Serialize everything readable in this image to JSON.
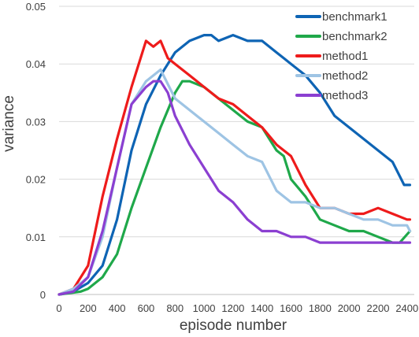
{
  "chart_data": {
    "type": "line",
    "title": "",
    "xlabel": "episode number",
    "ylabel": "variance",
    "xlim": [
      0,
      2450
    ],
    "ylim": [
      0,
      0.05
    ],
    "x_ticks": [
      "0",
      "200",
      "400",
      "600",
      "800",
      "1000",
      "1200",
      "1400",
      "1600",
      "1800",
      "2000",
      "2200",
      "2400"
    ],
    "x_tick_values": [
      0,
      200,
      400,
      600,
      800,
      1000,
      1200,
      1400,
      1600,
      1800,
      2000,
      2200,
      2400
    ],
    "y_ticks": [
      "0",
      "0.01",
      "0.02",
      "0.03",
      "0.04",
      "0.05"
    ],
    "y_tick_values": [
      0,
      0.01,
      0.02,
      0.03,
      0.04,
      0.05
    ],
    "grid": "horizontal",
    "legend_position": "top-right",
    "series": [
      {
        "name": "benchmark1",
        "color": "#0e64b4",
        "x": [
          0,
          100,
          200,
          300,
          400,
          500,
          600,
          700,
          800,
          900,
          1000,
          1050,
          1100,
          1200,
          1300,
          1400,
          1500,
          1550,
          1600,
          1700,
          1800,
          1900,
          2000,
          2100,
          2200,
          2300,
          2380,
          2420
        ],
        "y": [
          0,
          0.0005,
          0.002,
          0.005,
          0.013,
          0.025,
          0.033,
          0.038,
          0.042,
          0.044,
          0.045,
          0.045,
          0.044,
          0.045,
          0.044,
          0.044,
          0.042,
          0.041,
          0.04,
          0.038,
          0.035,
          0.031,
          0.029,
          0.027,
          0.025,
          0.023,
          0.019,
          0.019
        ]
      },
      {
        "name": "benchmark2",
        "color": "#1fa84a",
        "x": [
          0,
          150,
          200,
          300,
          400,
          500,
          600,
          700,
          800,
          850,
          900,
          1000,
          1100,
          1200,
          1300,
          1400,
          1500,
          1550,
          1600,
          1700,
          1800,
          1900,
          2000,
          2100,
          2200,
          2300,
          2350,
          2420
        ],
        "y": [
          0,
          0.0005,
          0.001,
          0.003,
          0.007,
          0.015,
          0.022,
          0.029,
          0.035,
          0.037,
          0.037,
          0.036,
          0.034,
          0.032,
          0.03,
          0.029,
          0.025,
          0.024,
          0.02,
          0.017,
          0.013,
          0.012,
          0.011,
          0.011,
          0.01,
          0.009,
          0.009,
          0.011
        ]
      },
      {
        "name": "method1",
        "color": "#ee1b1b",
        "x": [
          0,
          100,
          200,
          300,
          400,
          500,
          600,
          650,
          700,
          750,
          800,
          900,
          1000,
          1100,
          1200,
          1300,
          1400,
          1500,
          1600,
          1700,
          1800,
          1900,
          2000,
          2100,
          2200,
          2300,
          2400,
          2420
        ],
        "y": [
          0,
          0.001,
          0.005,
          0.017,
          0.027,
          0.036,
          0.044,
          0.043,
          0.044,
          0.041,
          0.04,
          0.038,
          0.036,
          0.034,
          0.033,
          0.031,
          0.029,
          0.026,
          0.024,
          0.019,
          0.015,
          0.015,
          0.014,
          0.014,
          0.015,
          0.014,
          0.013,
          0.013
        ]
      },
      {
        "name": "method2",
        "color": "#9ec4e4",
        "x": [
          0,
          100,
          200,
          300,
          400,
          500,
          600,
          700,
          800,
          900,
          1000,
          1100,
          1200,
          1300,
          1400,
          1500,
          1600,
          1700,
          1800,
          1900,
          2000,
          2100,
          2200,
          2300,
          2400,
          2420
        ],
        "y": [
          0,
          0.001,
          0.003,
          0.01,
          0.022,
          0.033,
          0.037,
          0.039,
          0.034,
          0.032,
          0.03,
          0.028,
          0.026,
          0.024,
          0.023,
          0.018,
          0.016,
          0.016,
          0.015,
          0.015,
          0.014,
          0.013,
          0.013,
          0.012,
          0.012,
          0.011
        ]
      },
      {
        "name": "method3",
        "color": "#8b3fd1",
        "x": [
          0,
          100,
          200,
          300,
          400,
          500,
          600,
          650,
          700,
          750,
          800,
          900,
          1000,
          1100,
          1200,
          1300,
          1400,
          1500,
          1600,
          1700,
          1800,
          1900,
          2000,
          2100,
          2200,
          2300,
          2400,
          2420
        ],
        "y": [
          0,
          0.0005,
          0.003,
          0.011,
          0.022,
          0.033,
          0.036,
          0.037,
          0.037,
          0.035,
          0.031,
          0.026,
          0.022,
          0.018,
          0.016,
          0.013,
          0.011,
          0.011,
          0.01,
          0.01,
          0.009,
          0.009,
          0.009,
          0.009,
          0.009,
          0.009,
          0.009,
          0.009
        ]
      }
    ]
  }
}
